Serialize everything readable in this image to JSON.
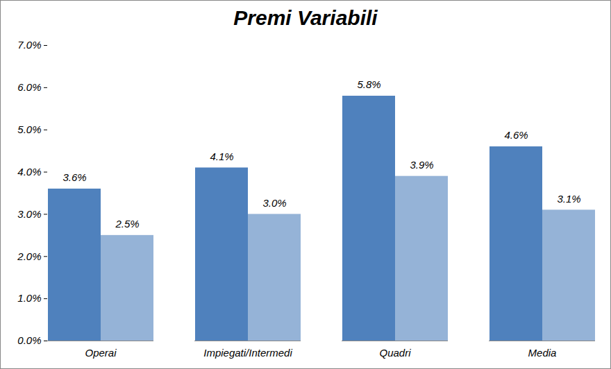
{
  "chart_data": {
    "type": "bar",
    "title": "Premi Variabili",
    "categories": [
      "Operai",
      "Impiegati/Intermedi",
      "Quadri",
      "Media"
    ],
    "series": [
      {
        "color": "#4f81bd",
        "values": [
          3.6,
          4.1,
          5.8,
          4.6
        ],
        "value_labels": [
          "3.6%",
          "4.1%",
          "5.8%",
          "4.6%"
        ]
      },
      {
        "color": "#95b3d7",
        "values": [
          2.5,
          3.0,
          3.9,
          3.1
        ],
        "value_labels": [
          "2.5%",
          "3.0%",
          "3.9%",
          "3.1%"
        ]
      }
    ],
    "ylim": [
      0,
      7
    ],
    "yticks": [
      {
        "value": 0,
        "label": "0.0%"
      },
      {
        "value": 1,
        "label": "1.0%"
      },
      {
        "value": 2,
        "label": "2.0%"
      },
      {
        "value": 3,
        "label": "3.0%"
      },
      {
        "value": 4,
        "label": "4.0%"
      },
      {
        "value": 5,
        "label": "5.0%"
      },
      {
        "value": 6,
        "label": "6.0%"
      },
      {
        "value": 7,
        "label": "7.0%"
      }
    ],
    "grid": false,
    "data_labels": true
  }
}
